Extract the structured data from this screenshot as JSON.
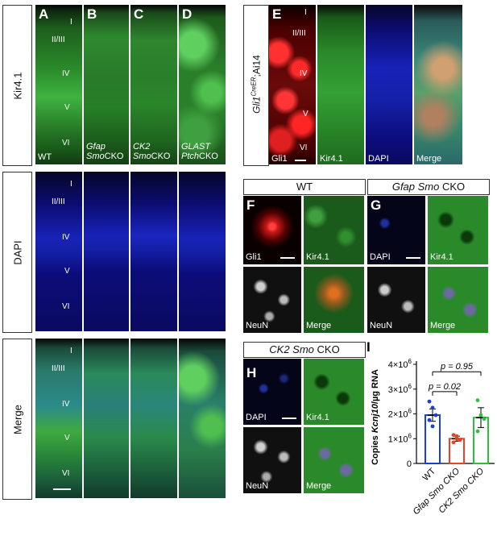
{
  "panels": {
    "A": "A",
    "B": "B",
    "C": "C",
    "D": "D",
    "E": "E",
    "F": "F",
    "G": "G",
    "H": "H",
    "I": "I"
  },
  "row_labels": {
    "kir41": "Kir4.1",
    "dapi": "DAPI",
    "merge": "Merge",
    "gli1_prefix": "Gli1",
    "gli1_sup": "CreER",
    "gli1_suffix": ";Ai14"
  },
  "layers_kir": [
    "I",
    "II/III",
    "IV",
    "V",
    "VI"
  ],
  "layers_dapi": [
    "I",
    "II/III",
    "IV",
    "V",
    "VI"
  ],
  "layers_merge": [
    "I",
    "II/III",
    "IV",
    "V",
    "VI"
  ],
  "layers_e": [
    "I",
    "II/III",
    "IV",
    "V",
    "VI"
  ],
  "genotypes": {
    "wt": "WT",
    "gfap_l1": "Gfap",
    "gfap_l2_it": "Smo",
    "gfap_l2": "CKO",
    "ck2_l1": "CK2",
    "ck2_l2_it": "Smo",
    "ck2_l2": "CKO",
    "glast_l1": "GLAST",
    "glast_l2_it": "Ptch",
    "glast_l2": "CKO"
  },
  "e_channels": [
    "Gli1",
    "Kir4.1",
    "DAPI",
    "Merge"
  ],
  "headers": {
    "wt": "WT",
    "gfap_it": "Gfap Smo",
    "gfap": " CKO",
    "ck2_it": "CK2 Smo",
    "ck2": " CKO"
  },
  "small_labels": {
    "f_gli1": "Gli1",
    "f_kir": "Kir4.1",
    "f_neun": "NeuN",
    "f_merge": "Merge",
    "g_dapi": "DAPI",
    "g_kir": "Kir4.1",
    "g_neun": "NeuN",
    "g_merge": "Merge",
    "h_dapi": "DAPI",
    "h_kir": "Kir4.1",
    "h_neun": "NeuN",
    "h_merge": "Merge"
  },
  "colors": {
    "green": "#2fd23a",
    "blue": "#2a3cff",
    "red": "#ff2020",
    "wt_bar": "#1a3fd6",
    "gfap_bar": "#e8412c",
    "ck2_bar": "#2fbf3a"
  },
  "chart_data": {
    "type": "bar",
    "ylabel_prefix": "Copies ",
    "ylabel_it": "Kcnj10",
    "ylabel_suffix": "/µg RNA",
    "yticks": [
      {
        "value": 0,
        "label": "0"
      },
      {
        "value": 1000000,
        "label": "1×10",
        "exp": "6"
      },
      {
        "value": 2000000,
        "label": "2×10",
        "exp": "6"
      },
      {
        "value": 3000000,
        "label": "3×10",
        "exp": "6"
      },
      {
        "value": 4000000,
        "label": "4×10",
        "exp": "6"
      }
    ],
    "ylim": [
      0,
      4000000
    ],
    "categories": [
      "WT",
      "Gfap Smo CKO",
      "CK2 Smo CKO"
    ],
    "values": [
      1950000,
      1000000,
      1850000
    ],
    "errors": [
      250000,
      100000,
      400000
    ],
    "points": [
      [
        2500000,
        2250000,
        1950000,
        1750000,
        1500000
      ],
      [
        1150000,
        1000000,
        950000,
        850000,
        1100000
      ],
      [
        2550000,
        1950000,
        1800000,
        1300000
      ]
    ],
    "comparisons": [
      {
        "from": 0,
        "to": 1,
        "label": "p = 0.02"
      },
      {
        "from": 0,
        "to": 2,
        "label": "p = 0.95"
      }
    ]
  }
}
